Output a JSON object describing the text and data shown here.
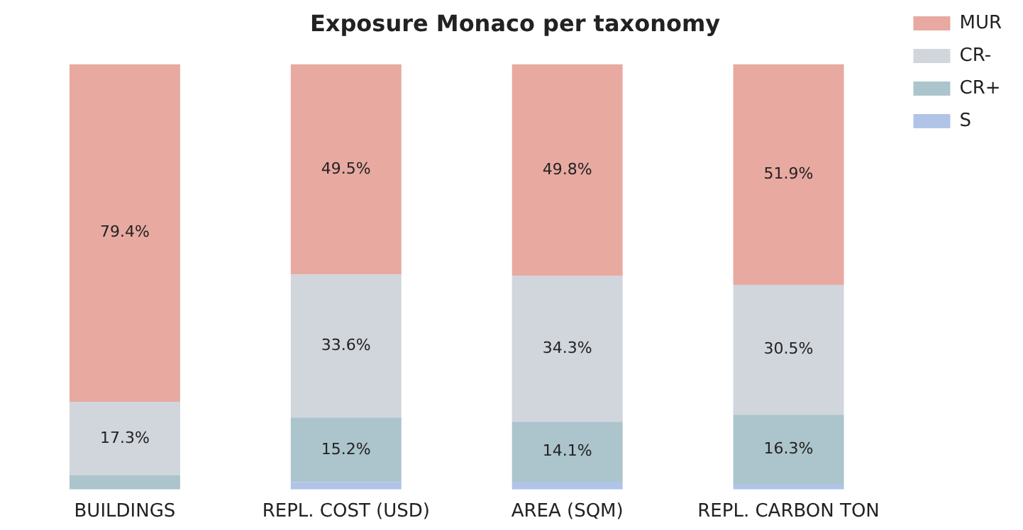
{
  "chart_data": {
    "type": "bar",
    "title": "Exposure Monaco per taxonomy",
    "stacked": true,
    "legend": "top right",
    "grid": false,
    "tick_labels": "x",
    "categories": [
      "BUILDINGS",
      "REPL. COST (USD)",
      "AREA (SQM)",
      "REPL. CARBON TON"
    ],
    "series": [
      {
        "name": "S",
        "color": "#b0c4e8",
        "values": [
          null,
          1.7,
          1.8,
          1.3
        ],
        "value_labels": [
          null,
          null,
          null,
          null
        ]
      },
      {
        "name": "CR+",
        "color": "#acc4cc",
        "values": [
          3.3,
          15.2,
          14.1,
          16.3
        ],
        "value_labels": [
          null,
          "15.2%",
          "14.1%",
          "16.3%"
        ]
      },
      {
        "name": "CR-",
        "color": "#d1d5dc",
        "values": [
          17.3,
          33.6,
          34.3,
          30.5
        ],
        "value_labels": [
          "17.3%",
          "33.6%",
          "34.3%",
          "30.5%"
        ]
      },
      {
        "name": "MUR",
        "color": "#e8a9a1",
        "values": [
          79.4,
          49.5,
          49.8,
          51.9
        ],
        "value_labels": [
          "79.4%",
          "49.5%",
          "49.8%",
          "51.9%"
        ]
      }
    ]
  }
}
